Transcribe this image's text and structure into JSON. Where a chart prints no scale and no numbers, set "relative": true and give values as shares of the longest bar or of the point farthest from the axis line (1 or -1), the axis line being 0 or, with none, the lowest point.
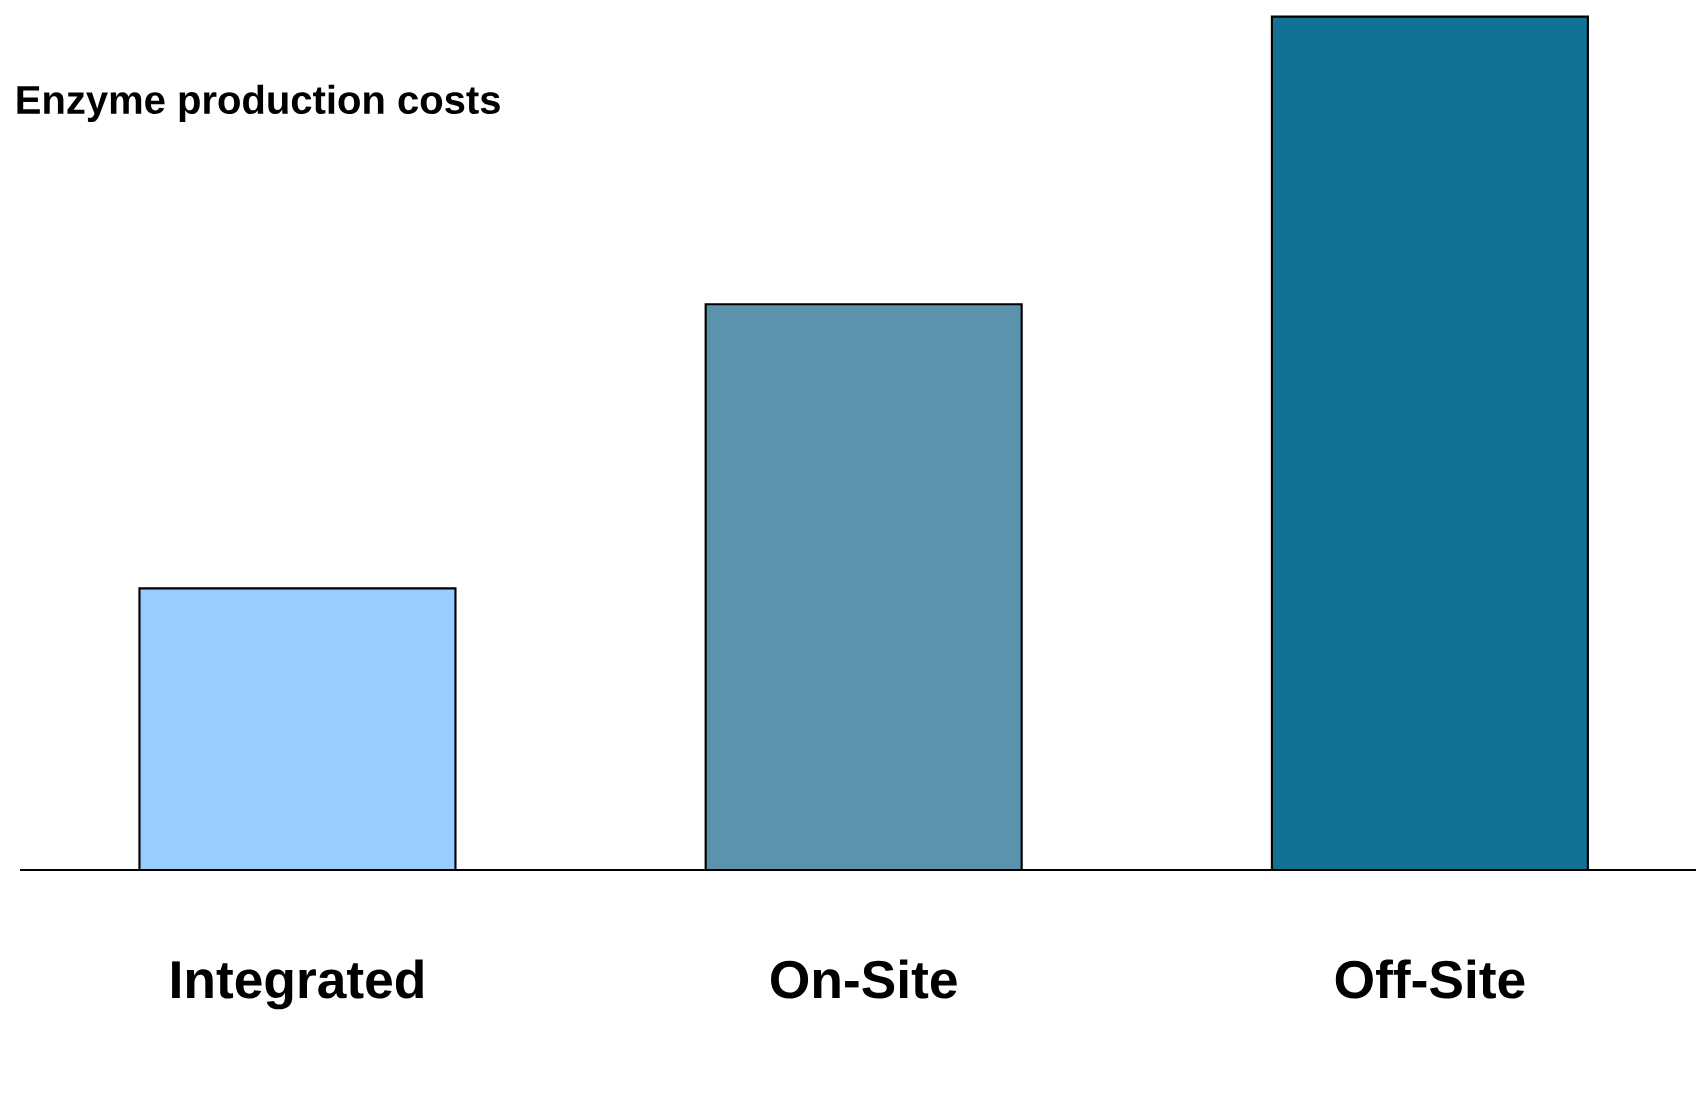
{
  "chart_data": {
    "type": "bar",
    "title": "Enzyme production costs",
    "categories": [
      "Integrated",
      "On-Site",
      "Off-Site"
    ],
    "values": [
      0.33,
      0.663,
      1
    ],
    "colors": [
      "#99ccff",
      "#5b92ae",
      "#137196"
    ],
    "relative": true
  }
}
